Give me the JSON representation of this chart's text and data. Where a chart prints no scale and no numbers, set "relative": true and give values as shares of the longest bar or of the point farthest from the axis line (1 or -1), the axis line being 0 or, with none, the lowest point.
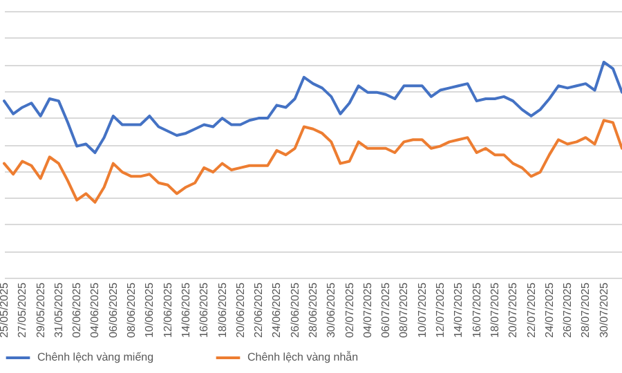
{
  "chart_data": {
    "type": "line",
    "relative": true,
    "grid": "y",
    "legend": "bottom",
    "line_style": "solid",
    "marker": "none",
    "categories": [
      "25/05/2025",
      null,
      "27/05/2025",
      null,
      "29/05/2025",
      null,
      "31/05/2025",
      null,
      "02/06/2025",
      null,
      "04/06/2025",
      null,
      "06/06/2025",
      null,
      "08/06/2025",
      null,
      "10/06/2025",
      null,
      "12/06/2025",
      null,
      "14/06/2025",
      null,
      "16/06/2025",
      null,
      "18/06/2025",
      null,
      "20/06/2025",
      null,
      "22/06/2025",
      null,
      "24/06/2025",
      null,
      "26/06/2025",
      null,
      "28/06/2025",
      null,
      "30/06/2025",
      null,
      "02/07/2025",
      null,
      "04/07/2025",
      null,
      "06/07/2025",
      null,
      "08/07/2025",
      null,
      "10/07/2025",
      null,
      "12/07/2025",
      null,
      "14/07/2025",
      null,
      "16/07/2025",
      null,
      "18/07/2025",
      null,
      "20/07/2025",
      null,
      "22/07/2025",
      null,
      "24/07/2025",
      null,
      "26/07/2025",
      null,
      "28/07/2025",
      null,
      "30/07/2025",
      null,
      null
    ],
    "series": [
      {
        "name": "Chênh lệch vàng miếng",
        "color": "#4472c4",
        "values": [
          0.82,
          0.76,
          0.79,
          0.81,
          0.75,
          0.83,
          0.82,
          0.72,
          0.61,
          0.62,
          0.58,
          0.65,
          0.75,
          0.71,
          0.71,
          0.71,
          0.75,
          0.7,
          0.68,
          0.66,
          0.67,
          0.69,
          0.71,
          0.7,
          0.74,
          0.71,
          0.71,
          0.73,
          0.74,
          0.74,
          0.8,
          0.79,
          0.83,
          0.93,
          0.9,
          0.88,
          0.84,
          0.76,
          0.81,
          0.89,
          0.86,
          0.86,
          0.85,
          0.83,
          0.89,
          0.89,
          0.89,
          0.84,
          0.87,
          0.88,
          0.89,
          0.9,
          0.82,
          0.83,
          0.83,
          0.84,
          0.82,
          0.78,
          0.75,
          0.78,
          0.83,
          0.89,
          0.88,
          0.89,
          0.9,
          0.87,
          1.0,
          0.97,
          0.86
        ]
      },
      {
        "name": "Chênh lệch vàng nhẫn",
        "color": "#ed7d31",
        "values": [
          0.53,
          0.48,
          0.54,
          0.52,
          0.46,
          0.56,
          0.53,
          0.45,
          0.36,
          0.39,
          0.35,
          0.42,
          0.53,
          0.49,
          0.47,
          0.47,
          0.48,
          0.44,
          0.43,
          0.39,
          0.42,
          0.44,
          0.51,
          0.49,
          0.53,
          0.5,
          0.51,
          0.52,
          0.52,
          0.52,
          0.59,
          0.57,
          0.6,
          0.7,
          0.69,
          0.67,
          0.63,
          0.53,
          0.54,
          0.63,
          0.6,
          0.6,
          0.6,
          0.58,
          0.63,
          0.64,
          0.64,
          0.6,
          0.61,
          0.63,
          0.64,
          0.65,
          0.58,
          0.6,
          0.57,
          0.57,
          0.53,
          0.51,
          0.47,
          0.49,
          0.57,
          0.64,
          0.62,
          0.63,
          0.65,
          0.62,
          0.73,
          0.72,
          0.6
        ]
      }
    ]
  }
}
